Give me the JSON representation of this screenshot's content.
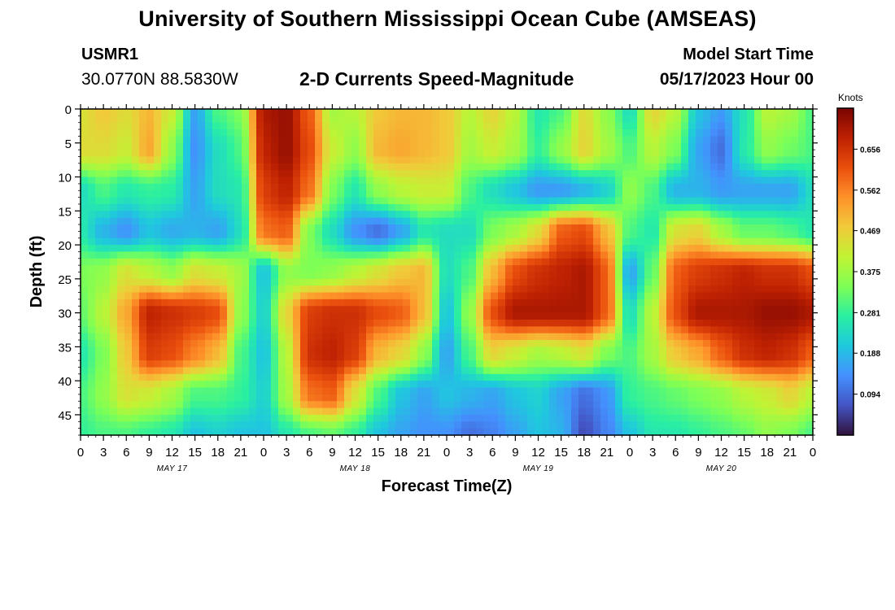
{
  "page": {
    "title_top": "University of Southern Mississippi Ocean Cube (AMSEAS)",
    "title_bottom": "University of Southern Mississippi Ocean Cube (AMSEAS)",
    "station": "USMR1",
    "coords": "30.0770N  88.5830W",
    "subtitle": "2-D Currents Speed-Magnitude",
    "start_label": "Model Start Time",
    "start_value": "05/17/2023 Hour 00",
    "units": "Knots"
  },
  "chart_data": {
    "type": "heatmap",
    "title": "2-D Currents Speed-Magnitude",
    "xlabel": "Forecast Time(Z)",
    "ylabel": "Depth (ft)",
    "x_ticks": [
      "0",
      "3",
      "6",
      "9",
      "12",
      "15",
      "18",
      "21",
      "0",
      "3",
      "6",
      "9",
      "12",
      "15",
      "18",
      "21",
      "0",
      "3",
      "6",
      "9",
      "12",
      "15",
      "18",
      "21",
      "0",
      "3",
      "6",
      "9",
      "12",
      "15",
      "18",
      "21",
      "0"
    ],
    "x_tick_hours": [
      0,
      3,
      6,
      9,
      12,
      15,
      18,
      21,
      24,
      27,
      30,
      33,
      36,
      39,
      42,
      45,
      48,
      51,
      54,
      57,
      60,
      63,
      66,
      69,
      72,
      75,
      78,
      81,
      84,
      87,
      90,
      93,
      96
    ],
    "day_labels": [
      {
        "label": "MAY 17",
        "hour": 12
      },
      {
        "label": "MAY 18",
        "hour": 36
      },
      {
        "label": "MAY 19",
        "hour": 60
      },
      {
        "label": "MAY 20",
        "hour": 84
      }
    ],
    "xlim": [
      0,
      96
    ],
    "y_ticks": [
      "0",
      "5",
      "10",
      "15",
      "20",
      "25",
      "30",
      "35",
      "40",
      "45"
    ],
    "y_tick_values": [
      0,
      5,
      10,
      15,
      20,
      25,
      30,
      35,
      40,
      45
    ],
    "ylim": [
      0,
      48
    ],
    "colorbar": {
      "label": "Knots",
      "range": [
        0.0,
        0.75
      ],
      "ticks": [
        "0.656",
        "0.562",
        "0.469",
        "0.375",
        "0.281",
        "0.188",
        "0.094"
      ],
      "tick_values": [
        0.656,
        0.562,
        0.469,
        0.375,
        0.281,
        0.188,
        0.094
      ],
      "colormap": [
        "#30123b",
        "#4454c4",
        "#4490fe",
        "#1fc8de",
        "#29efa2",
        "#7eff55",
        "#c1f334",
        "#f1ca3a",
        "#fe922a",
        "#ea4f0d",
        "#be2102",
        "#7a0403"
      ]
    },
    "grid": {
      "depths": [
        0,
        6,
        12,
        18,
        24,
        30,
        36,
        42,
        48
      ],
      "hours": [
        0,
        3,
        6,
        9,
        12,
        15,
        18,
        21,
        24,
        27,
        30,
        33,
        36,
        39,
        42,
        45,
        48,
        51,
        54,
        57,
        60,
        63,
        66,
        69,
        72,
        75,
        78,
        81,
        84,
        87,
        90,
        93,
        96
      ],
      "values": [
        [
          0.44,
          0.48,
          0.45,
          0.5,
          0.42,
          0.16,
          0.3,
          0.34,
          0.7,
          0.72,
          0.6,
          0.38,
          0.4,
          0.48,
          0.5,
          0.5,
          0.48,
          0.4,
          0.46,
          0.4,
          0.26,
          0.3,
          0.45,
          0.36,
          0.24,
          0.46,
          0.4,
          0.2,
          0.15,
          0.25,
          0.4,
          0.38,
          0.3
        ],
        [
          0.45,
          0.45,
          0.42,
          0.52,
          0.36,
          0.14,
          0.24,
          0.3,
          0.68,
          0.72,
          0.62,
          0.42,
          0.36,
          0.5,
          0.52,
          0.5,
          0.48,
          0.38,
          0.42,
          0.38,
          0.28,
          0.36,
          0.46,
          0.38,
          0.3,
          0.4,
          0.34,
          0.16,
          0.1,
          0.26,
          0.36,
          0.33,
          0.3
        ],
        [
          0.24,
          0.3,
          0.26,
          0.28,
          0.27,
          0.16,
          0.24,
          0.26,
          0.64,
          0.68,
          0.58,
          0.34,
          0.26,
          0.36,
          0.4,
          0.42,
          0.42,
          0.3,
          0.24,
          0.2,
          0.15,
          0.15,
          0.18,
          0.22,
          0.36,
          0.3,
          0.18,
          0.18,
          0.15,
          0.16,
          0.16,
          0.16,
          0.24
        ],
        [
          0.26,
          0.18,
          0.14,
          0.2,
          0.17,
          0.18,
          0.16,
          0.24,
          0.58,
          0.6,
          0.34,
          0.24,
          0.14,
          0.1,
          0.16,
          0.26,
          0.24,
          0.24,
          0.34,
          0.38,
          0.45,
          0.6,
          0.62,
          0.5,
          0.3,
          0.26,
          0.44,
          0.46,
          0.38,
          0.32,
          0.32,
          0.3,
          0.26
        ],
        [
          0.34,
          0.36,
          0.44,
          0.4,
          0.36,
          0.44,
          0.42,
          0.38,
          0.2,
          0.36,
          0.34,
          0.36,
          0.4,
          0.44,
          0.48,
          0.5,
          0.24,
          0.3,
          0.5,
          0.62,
          0.66,
          0.68,
          0.7,
          0.6,
          0.16,
          0.32,
          0.6,
          0.64,
          0.66,
          0.68,
          0.66,
          0.66,
          0.62
        ],
        [
          0.32,
          0.4,
          0.52,
          0.68,
          0.66,
          0.64,
          0.62,
          0.36,
          0.22,
          0.46,
          0.64,
          0.66,
          0.66,
          0.62,
          0.6,
          0.5,
          0.2,
          0.36,
          0.62,
          0.7,
          0.7,
          0.7,
          0.7,
          0.6,
          0.24,
          0.4,
          0.62,
          0.7,
          0.7,
          0.7,
          0.72,
          0.72,
          0.7
        ],
        [
          0.26,
          0.34,
          0.48,
          0.64,
          0.62,
          0.56,
          0.5,
          0.3,
          0.2,
          0.4,
          0.66,
          0.68,
          0.64,
          0.5,
          0.46,
          0.36,
          0.16,
          0.3,
          0.46,
          0.42,
          0.38,
          0.4,
          0.44,
          0.34,
          0.3,
          0.38,
          0.48,
          0.52,
          0.6,
          0.66,
          0.68,
          0.66,
          0.6
        ],
        [
          0.3,
          0.36,
          0.44,
          0.42,
          0.38,
          0.3,
          0.3,
          0.28,
          0.22,
          0.38,
          0.58,
          0.6,
          0.44,
          0.3,
          0.2,
          0.16,
          0.2,
          0.18,
          0.16,
          0.2,
          0.22,
          0.16,
          0.1,
          0.14,
          0.28,
          0.3,
          0.32,
          0.34,
          0.36,
          0.4,
          0.42,
          0.46,
          0.4
        ],
        [
          0.28,
          0.3,
          0.3,
          0.28,
          0.26,
          0.2,
          0.22,
          0.2,
          0.2,
          0.26,
          0.3,
          0.32,
          0.28,
          0.2,
          0.16,
          0.14,
          0.14,
          0.1,
          0.12,
          0.16,
          0.2,
          0.18,
          0.06,
          0.12,
          0.2,
          0.26,
          0.26,
          0.28,
          0.3,
          0.32,
          0.36,
          0.34,
          0.3
        ]
      ]
    }
  }
}
